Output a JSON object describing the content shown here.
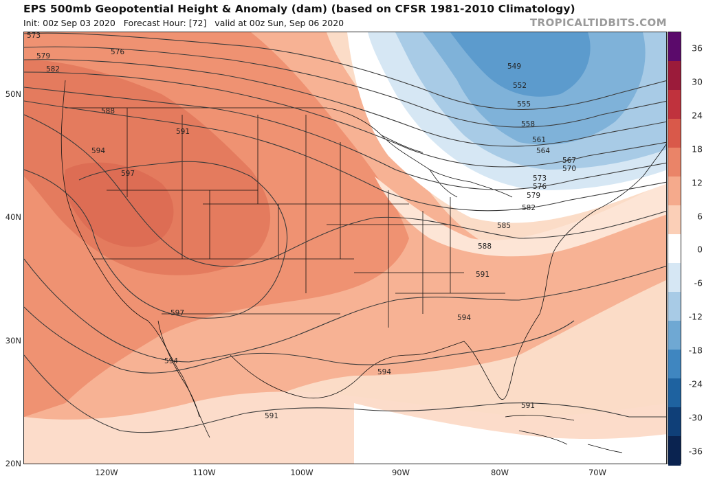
{
  "header": {
    "title": "EPS 500mb Geopotential Height & Anomaly (dam) (based on CFSR 1981-2010 Climatology)",
    "init": "Init: 00z Sep 03 2020",
    "forecast_hour": "Forecast Hour: [72]",
    "valid": "valid at 00z Sun, Sep 06 2020",
    "site": "TROPICALTIDBITS.COM"
  },
  "map": {
    "lat_labels": [
      "50N",
      "40N",
      "30N",
      "20N"
    ],
    "lon_labels": [
      "120W",
      "110W",
      "100W",
      "90W",
      "80W",
      "70W"
    ],
    "contour_labels": [
      "573",
      "576",
      "579",
      "582",
      "588",
      "591",
      "594",
      "597",
      "597",
      "594",
      "594",
      "594",
      "591",
      "591",
      "549",
      "552",
      "555",
      "558",
      "561",
      "564",
      "567",
      "570",
      "573",
      "576",
      "579",
      "582",
      "585",
      "588",
      "591"
    ]
  },
  "colorbar": {
    "tick_labels": [
      "36",
      "30",
      "24",
      "18",
      "12",
      "6",
      "0",
      "-6",
      "-12",
      "-18",
      "-24",
      "-30",
      "-36"
    ],
    "colors": [
      "#5b0a6b",
      "#9b1b3a",
      "#c0323d",
      "#d9594a",
      "#ea8468",
      "#f5aa8c",
      "#fbcfb7",
      "#ffffff",
      "#d6e7f4",
      "#a8cbe6",
      "#6fa8d3",
      "#3f86c0",
      "#1e62a0",
      "#0f3f78",
      "#0a2350"
    ]
  }
}
